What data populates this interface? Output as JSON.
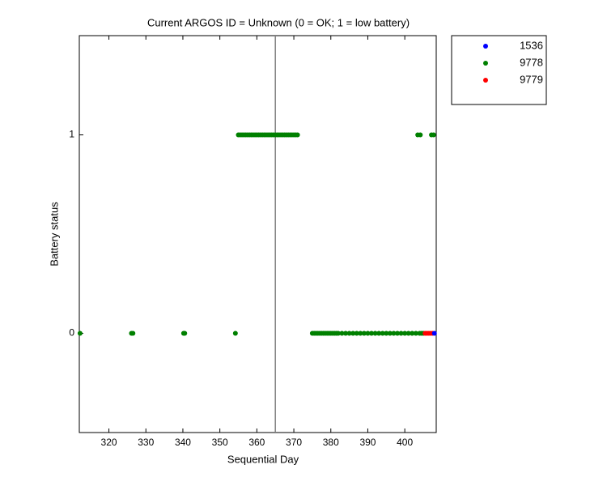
{
  "chart_data": {
    "type": "scatter",
    "title": "Current ARGOS ID = Unknown  (0 = OK; 1 = low battery)",
    "x_label": "Sequential Day",
    "y_label": "Battery status",
    "xlim": [
      312,
      408.5
    ],
    "ylim": [
      -0.5,
      1.5
    ],
    "xticks": [
      320,
      330,
      340,
      350,
      360,
      370,
      380,
      390,
      400
    ],
    "yticks": [
      0,
      1
    ],
    "vline": 365,
    "legend": "outside-top-right",
    "series": [
      {
        "name": "1536",
        "color": "#0000ff",
        "x": [
          408
        ],
        "values": [
          0
        ]
      },
      {
        "name": "9778",
        "color": "#008000",
        "x": [
          312.2,
          326.1,
          326.5,
          340.2,
          340.5,
          354.2,
          355,
          355.5,
          356,
          356.5,
          357,
          357.5,
          358,
          358.5,
          359,
          359.5,
          360,
          360.5,
          361,
          361.5,
          362,
          362.5,
          363,
          363.5,
          364,
          364.5,
          365,
          365.5,
          366,
          366.5,
          367,
          367.5,
          368,
          368.5,
          369,
          369.5,
          370,
          370.5,
          371,
          375,
          375.5,
          376,
          376.5,
          377,
          377.5,
          378,
          378.5,
          379,
          379.5,
          380,
          380.5,
          381,
          381.5,
          382,
          383,
          384,
          385,
          386,
          387,
          388,
          389,
          390,
          391,
          392,
          393,
          394,
          395,
          396,
          397,
          398,
          399,
          400,
          401,
          402,
          403,
          404,
          404.5,
          405,
          403.5,
          404.2,
          407.2,
          407.8
        ],
        "values": [
          0,
          0,
          0,
          0,
          0,
          0,
          1,
          1,
          1,
          1,
          1,
          1,
          1,
          1,
          1,
          1,
          1,
          1,
          1,
          1,
          1,
          1,
          1,
          1,
          1,
          1,
          1,
          1,
          1,
          1,
          1,
          1,
          1,
          1,
          1,
          1,
          1,
          1,
          1,
          0,
          0,
          0,
          0,
          0,
          0,
          0,
          0,
          0,
          0,
          0,
          0,
          0,
          0,
          0,
          0,
          0,
          0,
          0,
          0,
          0,
          0,
          0,
          0,
          0,
          0,
          0,
          0,
          0,
          0,
          0,
          0,
          0,
          0,
          0,
          0,
          0,
          0,
          0,
          1,
          1,
          1,
          1
        ]
      },
      {
        "name": "9779",
        "color": "#ff0000",
        "x": [
          405.5,
          406,
          406.5,
          407,
          407.5
        ],
        "values": [
          0,
          0,
          0,
          0,
          0
        ]
      }
    ]
  }
}
